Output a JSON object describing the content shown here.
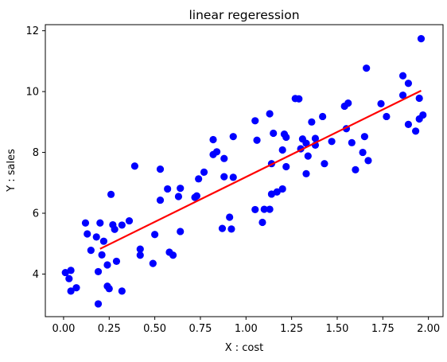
{
  "chart_data": {
    "type": "scatter",
    "title": "linear regeression",
    "xlabel": "X : cost",
    "ylabel": "Y : sales",
    "xlim": [
      -0.1,
      2.08
    ],
    "ylim": [
      2.6,
      12.2
    ],
    "xticks": [
      0.0,
      0.25,
      0.5,
      0.75,
      1.0,
      1.25,
      1.5,
      1.75,
      2.0
    ],
    "xtick_labels": [
      "0.00",
      "0.25",
      "0.50",
      "0.75",
      "1.00",
      "1.25",
      "1.50",
      "1.75",
      "2.00"
    ],
    "yticks": [
      4,
      6,
      8,
      10,
      12
    ],
    "ytick_labels": [
      "4",
      "6",
      "8",
      "10",
      "12"
    ],
    "grid": false,
    "series": [
      {
        "kind": "scatter",
        "color": "#0000ff",
        "points": [
          [
            0.01,
            4.05
          ],
          [
            0.03,
            3.85
          ],
          [
            0.04,
            4.12
          ],
          [
            0.04,
            3.44
          ],
          [
            0.07,
            3.55
          ],
          [
            0.12,
            5.68
          ],
          [
            0.13,
            5.32
          ],
          [
            0.15,
            4.78
          ],
          [
            0.18,
            5.22
          ],
          [
            0.19,
            4.08
          ],
          [
            0.19,
            3.02
          ],
          [
            0.2,
            5.68
          ],
          [
            0.21,
            4.63
          ],
          [
            0.22,
            5.08
          ],
          [
            0.24,
            4.3
          ],
          [
            0.24,
            3.6
          ],
          [
            0.25,
            3.52
          ],
          [
            0.26,
            6.62
          ],
          [
            0.27,
            5.62
          ],
          [
            0.28,
            5.47
          ],
          [
            0.29,
            4.42
          ],
          [
            0.32,
            3.44
          ],
          [
            0.32,
            5.61
          ],
          [
            0.36,
            5.75
          ],
          [
            0.39,
            7.55
          ],
          [
            0.42,
            4.62
          ],
          [
            0.42,
            4.82
          ],
          [
            0.49,
            4.35
          ],
          [
            0.5,
            5.3
          ],
          [
            0.53,
            7.45
          ],
          [
            0.53,
            6.43
          ],
          [
            0.57,
            6.8
          ],
          [
            0.58,
            4.72
          ],
          [
            0.6,
            4.62
          ],
          [
            0.63,
            6.55
          ],
          [
            0.64,
            6.82
          ],
          [
            0.64,
            5.4
          ],
          [
            0.72,
            6.52
          ],
          [
            0.73,
            6.57
          ],
          [
            0.74,
            7.13
          ],
          [
            0.77,
            7.35
          ],
          [
            0.82,
            7.93
          ],
          [
            0.82,
            8.42
          ],
          [
            0.84,
            8.02
          ],
          [
            0.87,
            5.5
          ],
          [
            0.88,
            7.2
          ],
          [
            0.88,
            7.8
          ],
          [
            0.91,
            5.87
          ],
          [
            0.92,
            5.48
          ],
          [
            0.93,
            7.18
          ],
          [
            0.93,
            8.52
          ],
          [
            1.05,
            9.04
          ],
          [
            1.05,
            6.12
          ],
          [
            1.06,
            8.4
          ],
          [
            1.09,
            5.7
          ],
          [
            1.1,
            6.13
          ],
          [
            1.13,
            6.13
          ],
          [
            1.13,
            9.27
          ],
          [
            1.14,
            7.63
          ],
          [
            1.14,
            6.63
          ],
          [
            1.15,
            8.63
          ],
          [
            1.17,
            6.7
          ],
          [
            1.2,
            6.8
          ],
          [
            1.2,
            8.08
          ],
          [
            1.21,
            8.6
          ],
          [
            1.22,
            8.5
          ],
          [
            1.22,
            7.53
          ],
          [
            1.27,
            9.77
          ],
          [
            1.29,
            9.76
          ],
          [
            1.3,
            8.12
          ],
          [
            1.31,
            8.44
          ],
          [
            1.33,
            7.3
          ],
          [
            1.33,
            8.3
          ],
          [
            1.34,
            7.88
          ],
          [
            1.36,
            9.0
          ],
          [
            1.38,
            8.24
          ],
          [
            1.38,
            8.46
          ],
          [
            1.42,
            9.18
          ],
          [
            1.43,
            7.63
          ],
          [
            1.47,
            8.36
          ],
          [
            1.54,
            9.52
          ],
          [
            1.55,
            8.78
          ],
          [
            1.56,
            9.62
          ],
          [
            1.58,
            8.32
          ],
          [
            1.6,
            7.43
          ],
          [
            1.64,
            8.0
          ],
          [
            1.65,
            8.52
          ],
          [
            1.66,
            10.77
          ],
          [
            1.67,
            7.73
          ],
          [
            1.74,
            9.6
          ],
          [
            1.77,
            9.18
          ],
          [
            1.86,
            10.52
          ],
          [
            1.86,
            9.88
          ],
          [
            1.89,
            10.27
          ],
          [
            1.89,
            8.92
          ],
          [
            1.93,
            8.7
          ],
          [
            1.95,
            9.78
          ],
          [
            1.95,
            9.1
          ],
          [
            1.96,
            11.74
          ],
          [
            1.97,
            9.23
          ]
        ]
      },
      {
        "kind": "line",
        "color": "#ff0000",
        "points": [
          [
            0.2,
            4.83
          ],
          [
            1.96,
            10.03
          ]
        ]
      }
    ]
  }
}
